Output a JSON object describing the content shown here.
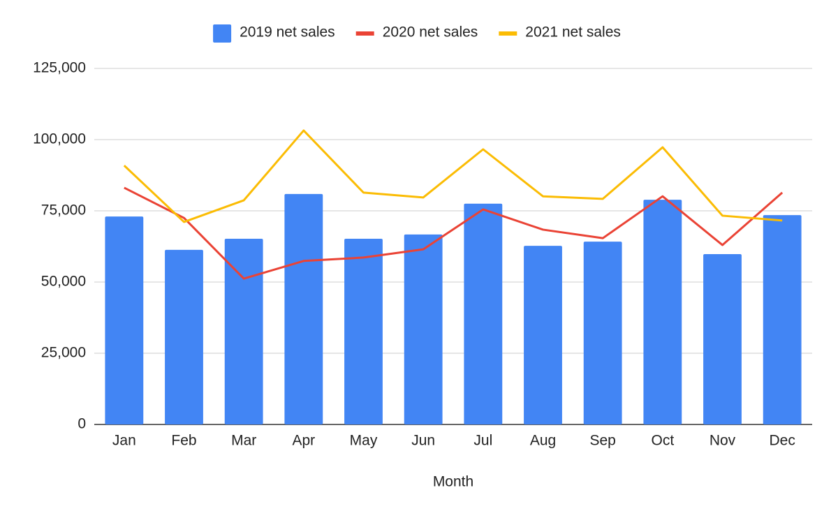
{
  "chart_data": {
    "type": "combo",
    "x_label": "Month",
    "categories": [
      "Jan",
      "Feb",
      "Mar",
      "Apr",
      "May",
      "Jun",
      "Jul",
      "Aug",
      "Sep",
      "Oct",
      "Nov",
      "Dec"
    ],
    "series": [
      {
        "name": "2019 net sales",
        "type": "bar",
        "color": "#4285f4",
        "values": [
          73000,
          61300,
          65200,
          80900,
          65200,
          66700,
          77500,
          62700,
          64200,
          78900,
          59800,
          73500
        ]
      },
      {
        "name": "2020 net sales",
        "type": "line",
        "color": "#ea4335",
        "values": [
          83100,
          72500,
          51200,
          57400,
          58600,
          61500,
          75500,
          68400,
          65400,
          80100,
          63000,
          81400
        ]
      },
      {
        "name": "2021 net sales",
        "type": "line",
        "color": "#fbbc04",
        "values": [
          90900,
          71100,
          78700,
          103200,
          81400,
          79700,
          96600,
          80100,
          79200,
          97300,
          73300,
          71600
        ]
      }
    ],
    "ylim": [
      0,
      125000
    ],
    "yticks": [
      0,
      {
        "value": 25000,
        "label": "25,000"
      },
      {
        "value": 50000,
        "label": "50,000"
      },
      {
        "value": 75000,
        "label": "75,000"
      },
      {
        "value": 100000,
        "label": "100,000"
      },
      {
        "value": 125000,
        "label": "125,000"
      }
    ],
    "grid": true,
    "legend": "top"
  }
}
